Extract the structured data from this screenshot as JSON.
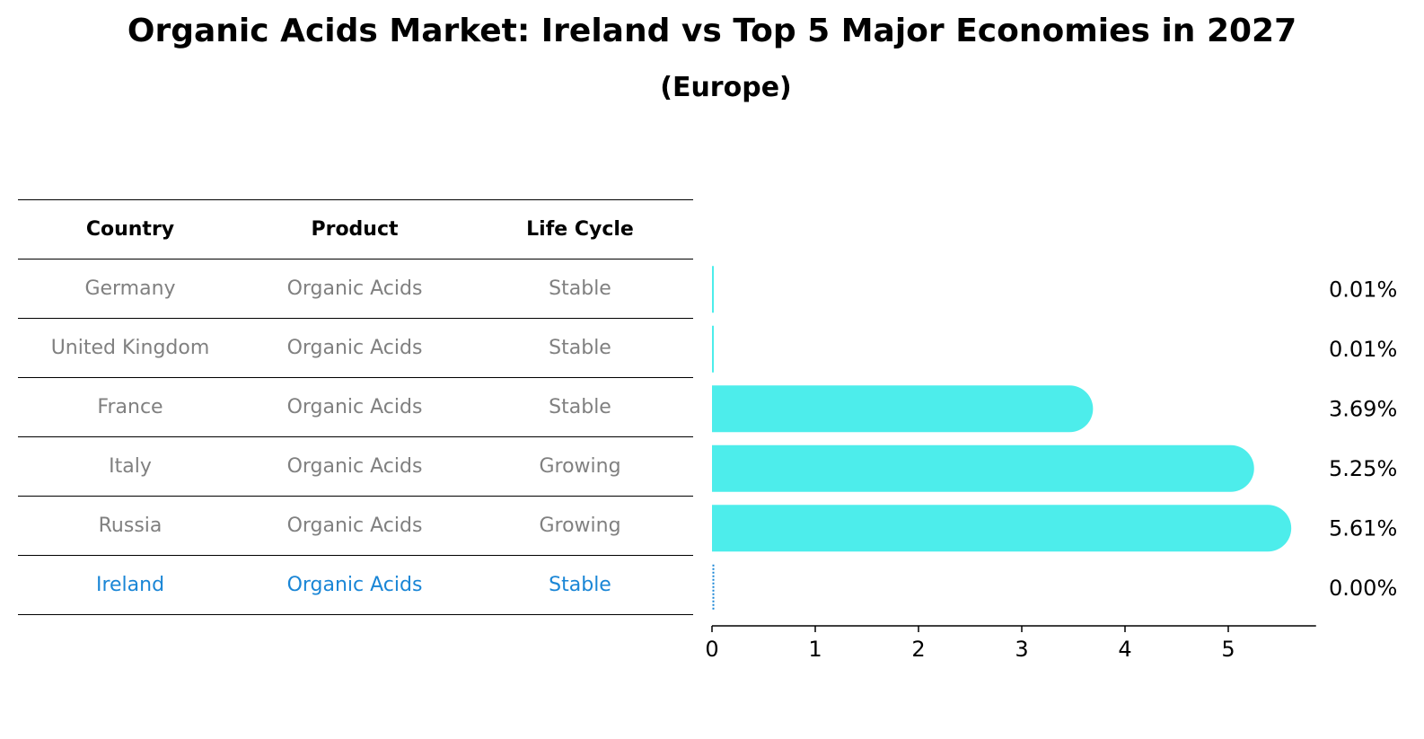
{
  "header": {
    "title": "Organic Acids Market: Ireland vs Top 5 Major Economies in 2027",
    "subtitle": "(Europe)"
  },
  "table": {
    "headers": [
      "Country",
      "Product",
      "Life Cycle"
    ],
    "rows": [
      {
        "country": "Germany",
        "product": "Organic Acids",
        "life_cycle": "Stable",
        "highlight": false
      },
      {
        "country": "United Kingdom",
        "product": "Organic Acids",
        "life_cycle": "Stable",
        "highlight": false
      },
      {
        "country": "France",
        "product": "Organic Acids",
        "life_cycle": "Stable",
        "highlight": false
      },
      {
        "country": "Italy",
        "product": "Organic Acids",
        "life_cycle": "Growing",
        "highlight": false
      },
      {
        "country": "Russia",
        "product": "Organic Acids",
        "life_cycle": "Growing",
        "highlight": false
      },
      {
        "country": "Ireland",
        "product": "Organic Acids",
        "life_cycle": "Stable",
        "highlight": true
      }
    ]
  },
  "colors": {
    "bar": "#4dedeb",
    "highlight": "#1a86d6",
    "muted_text": "#808080",
    "line": "#000000"
  },
  "chart_data": {
    "type": "bar",
    "orientation": "horizontal",
    "title": "Organic Acids Market: Ireland vs Top 5 Major Economies in 2027",
    "subtitle": "(Europe)",
    "categories": [
      "Germany",
      "United Kingdom",
      "France",
      "Italy",
      "Russia",
      "Ireland"
    ],
    "values": [
      0.01,
      0.01,
      3.69,
      5.25,
      5.61,
      0.0
    ],
    "data_labels": [
      "0.01%",
      "0.01%",
      "3.69%",
      "5.25%",
      "5.61%",
      "0.00%"
    ],
    "xlim": [
      0,
      5.85
    ],
    "xticks": [
      0,
      1,
      2,
      3,
      4,
      5
    ],
    "xlabel": "",
    "ylabel": "",
    "grid": false
  }
}
